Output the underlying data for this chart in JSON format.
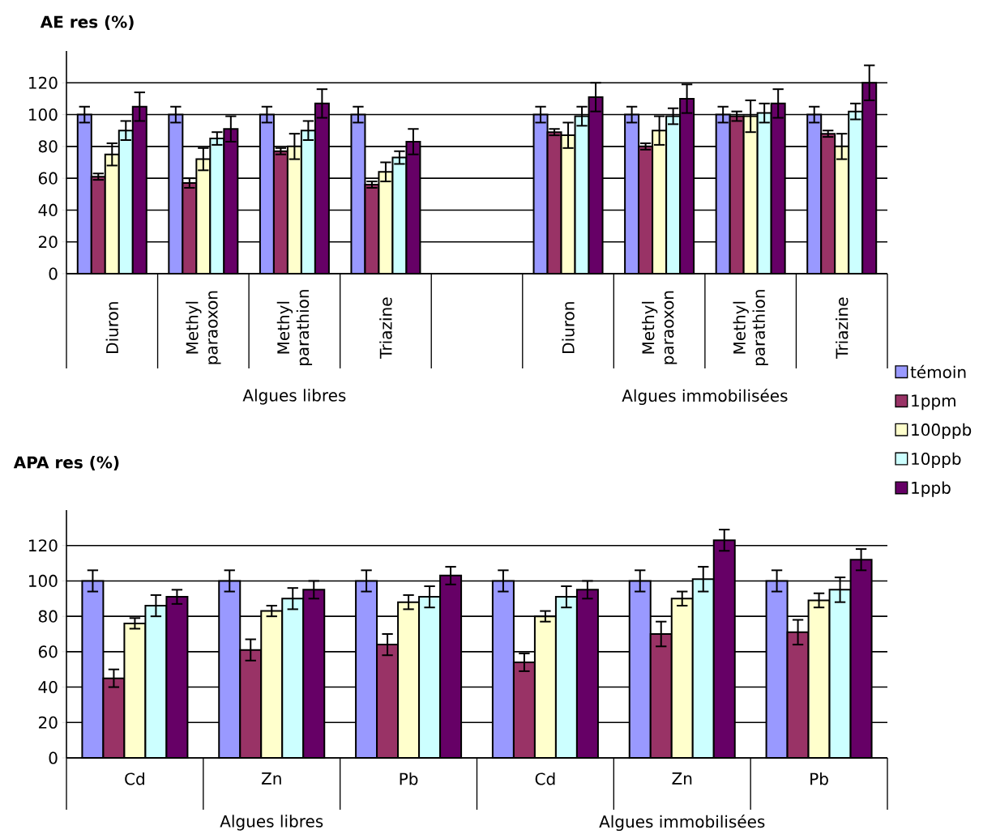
{
  "chart_data": [
    {
      "type": "bar",
      "ylabel": "AE res (%)",
      "categories": [
        "Diuron",
        "Methyl paraoxon",
        "Methyl parathion",
        "Triazine",
        null,
        "Diuron",
        "Methyl paraoxon",
        "Methyl parathion",
        "Triazine"
      ],
      "series": [
        {
          "name": "témoin",
          "color": "#9999ff",
          "values": [
            100,
            100,
            100,
            100,
            null,
            100,
            100,
            100,
            100
          ],
          "errors": [
            5,
            5,
            5,
            5,
            null,
            5,
            5,
            5,
            5
          ]
        },
        {
          "name": "1ppm",
          "color": "#993366",
          "values": [
            61,
            57,
            77,
            56,
            null,
            89,
            80,
            99,
            88
          ],
          "errors": [
            2,
            3,
            2,
            2,
            null,
            2,
            2,
            3,
            2
          ]
        },
        {
          "name": "100ppb",
          "color": "#ffffcc",
          "values": [
            75,
            72,
            80,
            64,
            null,
            87,
            90,
            99,
            80
          ],
          "errors": [
            7,
            7,
            8,
            6,
            null,
            8,
            9,
            10,
            8
          ]
        },
        {
          "name": "10ppb",
          "color": "#ccffff",
          "values": [
            90,
            85,
            90,
            73,
            null,
            99,
            99,
            101,
            102
          ],
          "errors": [
            6,
            4,
            6,
            4,
            null,
            6,
            5,
            6,
            5
          ]
        },
        {
          "name": "1ppb",
          "color": "#660066",
          "values": [
            105,
            91,
            107,
            83,
            null,
            111,
            110,
            107,
            120
          ],
          "errors": [
            9,
            8,
            9,
            8,
            null,
            9,
            9,
            9,
            11
          ]
        }
      ],
      "ylim": [
        0,
        140
      ],
      "yticks": [
        0,
        20,
        40,
        60,
        80,
        100,
        120
      ],
      "grid": "y",
      "legend": "right",
      "annotations": [
        "Algues libres",
        "Algues immobilisées"
      ]
    },
    {
      "type": "bar",
      "ylabel": "APA res (%)",
      "categories": [
        "Cd",
        "Zn",
        "Pb",
        "Cd",
        "Zn",
        "Pb"
      ],
      "series": [
        {
          "color": "#9999ff",
          "values": [
            100,
            100,
            100,
            100,
            100,
            100
          ],
          "errors": [
            6,
            6,
            6,
            6,
            6,
            6
          ]
        },
        {
          "color": "#993366",
          "values": [
            45,
            61,
            64,
            54,
            70,
            71
          ],
          "errors": [
            5,
            6,
            6,
            5,
            7,
            7
          ]
        },
        {
          "color": "#ffffcc",
          "values": [
            76,
            83,
            88,
            80,
            90,
            89
          ],
          "errors": [
            3,
            3,
            4,
            3,
            4,
            4
          ]
        },
        {
          "color": "#ccffff",
          "values": [
            86,
            90,
            91,
            91,
            101,
            95
          ],
          "errors": [
            6,
            6,
            6,
            6,
            7,
            7
          ]
        },
        {
          "color": "#660066",
          "values": [
            91,
            95,
            103,
            95,
            123,
            112
          ],
          "errors": [
            4,
            5,
            5,
            5,
            6,
            6
          ]
        }
      ],
      "ylim": [
        0,
        140
      ],
      "yticks": [
        0,
        20,
        40,
        60,
        80,
        100,
        120
      ],
      "grid": "y",
      "annotations": [
        "Algues libres",
        "Algues immobilisées"
      ]
    }
  ]
}
